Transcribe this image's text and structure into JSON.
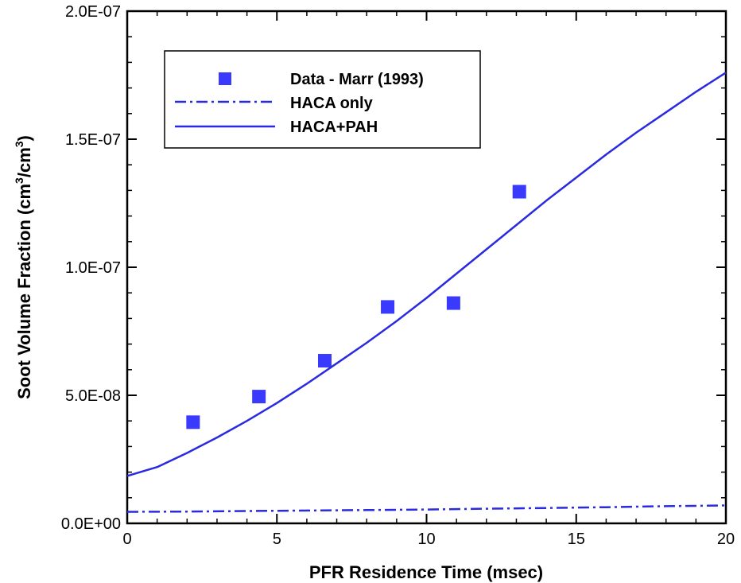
{
  "chart_data": {
    "type": "scatter",
    "title": "",
    "xlabel": "PFR Residence Time (msec)",
    "ylabel": {
      "main": "Soot Volume Fraction (cm",
      "sup1": "3",
      "mid": "/cm",
      "sup2": "3",
      "end": ")"
    },
    "xlim": [
      0,
      20
    ],
    "ylim": [
      0,
      2e-07
    ],
    "x_ticks": [
      0,
      5,
      10,
      15,
      20
    ],
    "x_tick_labels": [
      "0",
      "5",
      "10",
      "15",
      "20"
    ],
    "y_ticks": [
      0,
      5e-08,
      1e-07,
      1.5e-07,
      2e-07
    ],
    "y_tick_labels": [
      "0.0E+00",
      "5.0E-08",
      "1.0E-07",
      "1.5E-07",
      "2.0E-07"
    ],
    "x_minor_step": 1,
    "y_minor_step": 1e-08,
    "grid": false,
    "legend_position": "top-left",
    "series": [
      {
        "name": "Data - Marr (1993)",
        "kind": "markers",
        "marker": "square",
        "color": "#3a3aff",
        "x": [
          2.2,
          4.4,
          6.6,
          8.7,
          10.9,
          13.1
        ],
        "y": [
          3.95e-08,
          4.95e-08,
          6.35e-08,
          8.45e-08,
          8.6e-08,
          1.295e-07
        ]
      },
      {
        "name": "HACA only",
        "kind": "line",
        "dash": "dashdot",
        "color": "#2a2ae0",
        "x": [
          0,
          2,
          4,
          6,
          8,
          10,
          12,
          14,
          16,
          18,
          20
        ],
        "y": [
          4.5e-09,
          4.6e-09,
          4.8e-09,
          5e-09,
          5.2e-09,
          5.4e-09,
          5.7e-09,
          6e-09,
          6.3e-09,
          6.7e-09,
          7e-09
        ]
      },
      {
        "name": "HACA+PAH",
        "kind": "line",
        "dash": "solid",
        "color": "#2a2ae0",
        "x": [
          0,
          1,
          2,
          3,
          4,
          5,
          6,
          7,
          8,
          9,
          10,
          11,
          12,
          13,
          14,
          15,
          16,
          17,
          18,
          19,
          20
        ],
        "y": [
          1.85e-08,
          2.2e-08,
          2.75e-08,
          3.35e-08,
          4e-08,
          4.7e-08,
          5.45e-08,
          6.25e-08,
          7.05e-08,
          7.9e-08,
          8.8e-08,
          9.75e-08,
          1.07e-07,
          1.165e-07,
          1.26e-07,
          1.35e-07,
          1.44e-07,
          1.525e-07,
          1.605e-07,
          1.685e-07,
          1.76e-07
        ]
      }
    ]
  }
}
